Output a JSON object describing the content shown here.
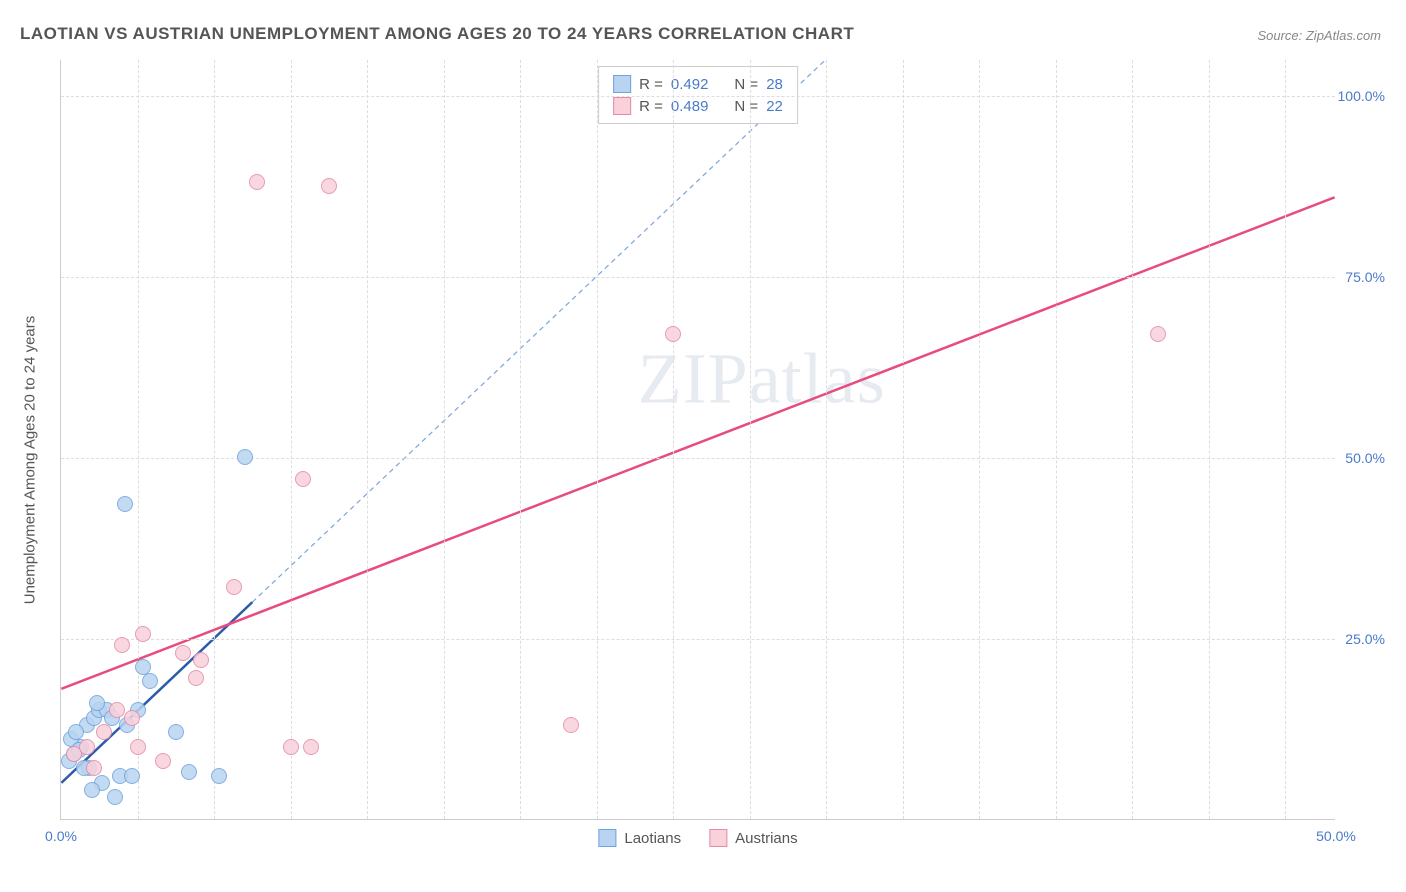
{
  "title": "LAOTIAN VS AUSTRIAN UNEMPLOYMENT AMONG AGES 20 TO 24 YEARS CORRELATION CHART",
  "source": "Source: ZipAtlas.com",
  "watermark": "ZIPatlas",
  "y_axis_label": "Unemployment Among Ages 20 to 24 years",
  "chart": {
    "type": "scatter",
    "xlim": [
      0,
      50
    ],
    "ylim": [
      0,
      105
    ],
    "x_ticks": [
      0,
      50
    ],
    "x_tick_labels": [
      "0.0%",
      "50.0%"
    ],
    "y_ticks": [
      25,
      50,
      75,
      100
    ],
    "y_tick_labels": [
      "25.0%",
      "50.0%",
      "75.0%",
      "100.0%"
    ],
    "x_minor_gridlines": [
      3,
      6,
      9,
      12,
      15,
      18,
      21,
      24,
      27,
      30,
      33,
      36,
      39,
      42,
      45,
      48
    ],
    "background_color": "#ffffff",
    "grid_color": "#dddddd",
    "axis_color": "#cccccc",
    "tick_label_color": "#4a7bc8",
    "tick_fontsize": 14,
    "series": [
      {
        "name": "Laotians",
        "marker_fill": "#b8d4f0",
        "marker_stroke": "#6fa3dd",
        "marker_size": 16,
        "R": "0.492",
        "N": "28",
        "trendline": {
          "color": "#2a5caa",
          "width": 2.5,
          "dash": "none",
          "x1": 0,
          "y1": 5,
          "x2": 7.5,
          "y2": 30
        },
        "extrapolation": {
          "color": "#7ba5d8",
          "width": 1.2,
          "dash": "5,4",
          "x1": 7.5,
          "y1": 30,
          "x2": 30,
          "y2": 105
        },
        "points": [
          {
            "x": 0.3,
            "y": 8
          },
          {
            "x": 0.5,
            "y": 9
          },
          {
            "x": 0.8,
            "y": 10
          },
          {
            "x": 0.4,
            "y": 11
          },
          {
            "x": 0.7,
            "y": 9.5
          },
          {
            "x": 1.0,
            "y": 13
          },
          {
            "x": 1.3,
            "y": 14
          },
          {
            "x": 1.5,
            "y": 15
          },
          {
            "x": 0.6,
            "y": 12
          },
          {
            "x": 1.8,
            "y": 15
          },
          {
            "x": 2.0,
            "y": 14
          },
          {
            "x": 1.1,
            "y": 7
          },
          {
            "x": 2.3,
            "y": 6
          },
          {
            "x": 2.6,
            "y": 13
          },
          {
            "x": 3.0,
            "y": 15
          },
          {
            "x": 1.6,
            "y": 5
          },
          {
            "x": 3.5,
            "y": 19
          },
          {
            "x": 5.0,
            "y": 6.5
          },
          {
            "x": 2.8,
            "y": 6
          },
          {
            "x": 1.2,
            "y": 4
          },
          {
            "x": 2.1,
            "y": 3
          },
          {
            "x": 6.2,
            "y": 6
          },
          {
            "x": 4.5,
            "y": 12
          },
          {
            "x": 3.2,
            "y": 21
          },
          {
            "x": 2.5,
            "y": 43.5
          },
          {
            "x": 7.2,
            "y": 50
          },
          {
            "x": 0.9,
            "y": 7
          },
          {
            "x": 1.4,
            "y": 16
          }
        ]
      },
      {
        "name": "Austrians",
        "marker_fill": "#f8d1db",
        "marker_stroke": "#e68aa8",
        "marker_size": 16,
        "R": "0.489",
        "N": "22",
        "trendline": {
          "color": "#e84b7e",
          "width": 2.5,
          "dash": "none",
          "x1": 0,
          "y1": 18,
          "x2": 50,
          "y2": 86
        },
        "points": [
          {
            "x": 0.5,
            "y": 9
          },
          {
            "x": 1.0,
            "y": 10
          },
          {
            "x": 1.7,
            "y": 12
          },
          {
            "x": 1.3,
            "y": 7
          },
          {
            "x": 2.2,
            "y": 15
          },
          {
            "x": 2.8,
            "y": 14
          },
          {
            "x": 4.0,
            "y": 8
          },
          {
            "x": 3.0,
            "y": 10
          },
          {
            "x": 2.4,
            "y": 24
          },
          {
            "x": 3.2,
            "y": 25.5
          },
          {
            "x": 4.8,
            "y": 23
          },
          {
            "x": 5.5,
            "y": 22
          },
          {
            "x": 5.3,
            "y": 19.5
          },
          {
            "x": 6.8,
            "y": 32
          },
          {
            "x": 9.0,
            "y": 10
          },
          {
            "x": 9.8,
            "y": 10
          },
          {
            "x": 9.5,
            "y": 47
          },
          {
            "x": 20.0,
            "y": 13
          },
          {
            "x": 24.0,
            "y": 67
          },
          {
            "x": 7.7,
            "y": 88
          },
          {
            "x": 10.5,
            "y": 87.5
          },
          {
            "x": 43.0,
            "y": 67
          }
        ]
      }
    ]
  },
  "stats_box": {
    "rows": [
      {
        "swatch_fill": "#b8d4f0",
        "swatch_stroke": "#6fa3dd",
        "r_label": "R =",
        "r_val": "0.492",
        "n_label": "N =",
        "n_val": "28"
      },
      {
        "swatch_fill": "#f8d1db",
        "swatch_stroke": "#e68aa8",
        "r_label": "R =",
        "r_val": "0.489",
        "n_label": "N =",
        "n_val": "22"
      }
    ]
  },
  "bottom_legend": [
    {
      "swatch_fill": "#b8d4f0",
      "swatch_stroke": "#6fa3dd",
      "label": "Laotians"
    },
    {
      "swatch_fill": "#f8d1db",
      "swatch_stroke": "#e68aa8",
      "label": "Austrians"
    }
  ]
}
